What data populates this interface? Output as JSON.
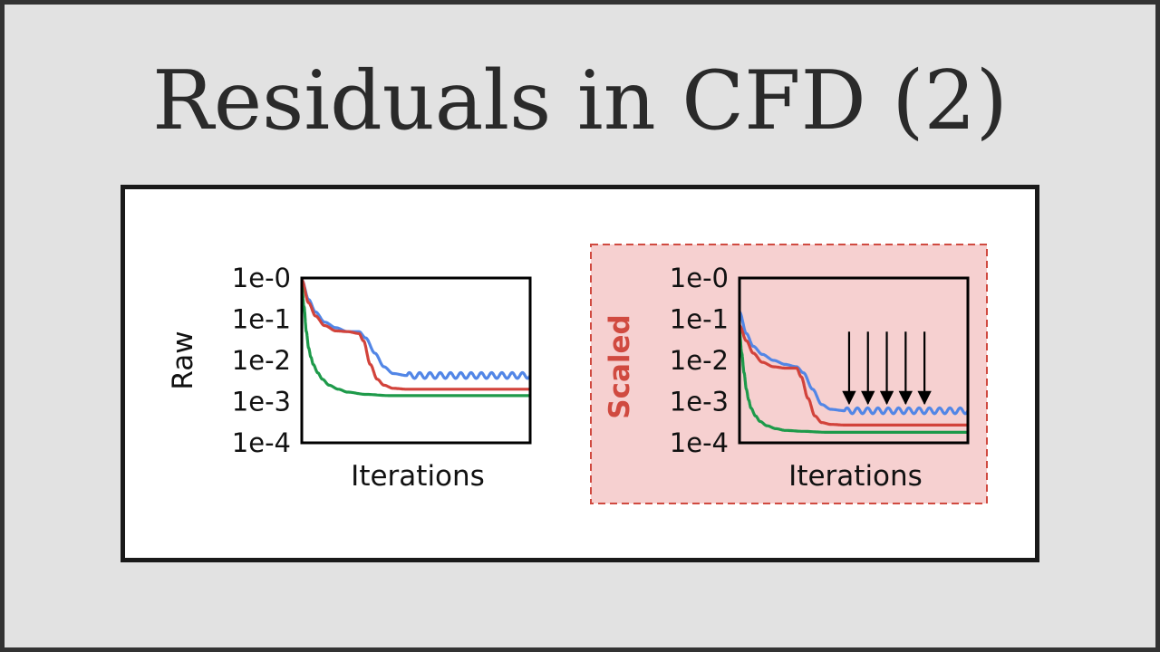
{
  "slide": {
    "title": "Residuals in CFD (2)"
  },
  "colors": {
    "blue": "#5286e6",
    "red": "#d2433b",
    "green": "#1e9a4a",
    "highlight_fill": "#f6d0d0",
    "highlight_border": "#d04a40"
  },
  "chart_data": [
    {
      "type": "line",
      "ylabel": "Raw",
      "xlabel": "Iterations",
      "yscale": "log",
      "yticks": [
        "1e-0",
        "1e-1",
        "1e-2",
        "1e-3",
        "1e-4"
      ],
      "ylim": [
        0.0001,
        1
      ],
      "xlim": [
        0,
        100
      ],
      "series": [
        {
          "color": "blue",
          "x": [
            0,
            3,
            6,
            10,
            15,
            20,
            25,
            28,
            32,
            36,
            40,
            46,
            52,
            60,
            70,
            80,
            90,
            100
          ],
          "y": [
            0.9,
            0.3,
            0.15,
            0.085,
            0.062,
            0.05,
            0.05,
            0.035,
            0.015,
            0.007,
            0.0048,
            0.0043,
            0.0043,
            0.0043,
            0.0043,
            0.0043,
            0.0043,
            0.0043
          ],
          "oscillation": {
            "from_x": 46,
            "amplitude_decades": 0.07,
            "cycles": 12
          }
        },
        {
          "color": "red",
          "x": [
            0,
            3,
            6,
            10,
            15,
            20,
            25,
            27,
            30,
            33,
            36,
            40,
            46,
            55,
            70,
            85,
            100
          ],
          "y": [
            0.9,
            0.25,
            0.12,
            0.07,
            0.052,
            0.05,
            0.045,
            0.03,
            0.008,
            0.0035,
            0.0025,
            0.0021,
            0.002,
            0.002,
            0.002,
            0.002,
            0.002
          ],
          "oscillation": null
        },
        {
          "color": "green",
          "x": [
            0,
            1,
            2,
            3,
            4,
            5,
            7,
            9,
            12,
            16,
            20,
            28,
            38,
            50,
            70,
            100
          ],
          "y": [
            0.6,
            0.2,
            0.05,
            0.02,
            0.012,
            0.008,
            0.005,
            0.0035,
            0.0025,
            0.002,
            0.0017,
            0.0015,
            0.0014,
            0.0014,
            0.0014,
            0.0014
          ],
          "oscillation": null
        }
      ],
      "annotations": []
    },
    {
      "type": "line",
      "ylabel": "Scaled",
      "xlabel": "Iterations",
      "yscale": "log",
      "yticks": [
        "1e-0",
        "1e-1",
        "1e-2",
        "1e-3",
        "1e-4"
      ],
      "ylim": [
        0.0001,
        1
      ],
      "xlim": [
        0,
        100
      ],
      "series": [
        {
          "color": "blue",
          "x": [
            0,
            3,
            6,
            10,
            15,
            20,
            25,
            28,
            32,
            36,
            40,
            46,
            52,
            60,
            70,
            80,
            90,
            100
          ],
          "y": [
            0.15,
            0.045,
            0.022,
            0.014,
            0.01,
            0.008,
            0.007,
            0.005,
            0.002,
            0.00085,
            0.00065,
            0.0006,
            0.0006,
            0.0006,
            0.0006,
            0.0006,
            0.0006,
            0.0006
          ],
          "oscillation": {
            "from_x": 46,
            "amplitude_decades": 0.07,
            "cycles": 12
          }
        },
        {
          "color": "red",
          "x": [
            0,
            3,
            6,
            10,
            15,
            20,
            25,
            27,
            30,
            33,
            36,
            40,
            46,
            55,
            70,
            85,
            100
          ],
          "y": [
            0.07,
            0.03,
            0.015,
            0.009,
            0.007,
            0.0065,
            0.0065,
            0.004,
            0.0012,
            0.00045,
            0.00031,
            0.00028,
            0.00027,
            0.00027,
            0.00027,
            0.00027,
            0.00027
          ],
          "oscillation": null
        },
        {
          "color": "green",
          "x": [
            0,
            1,
            2,
            3,
            4,
            5,
            7,
            9,
            12,
            16,
            20,
            28,
            38,
            50,
            70,
            100
          ],
          "y": [
            0.05,
            0.015,
            0.005,
            0.002,
            0.0011,
            0.0007,
            0.00045,
            0.00033,
            0.00026,
            0.00022,
            0.0002,
            0.00019,
            0.00018,
            0.00018,
            0.00018,
            0.00018
          ],
          "oscillation": null
        }
      ],
      "annotations": [
        {
          "type": "down-arrows",
          "count": 5,
          "x_from": 48,
          "x_to": 81,
          "y_start": 0.05,
          "y_end": 0.0009,
          "color": "#000000"
        }
      ],
      "highlight": true
    }
  ]
}
